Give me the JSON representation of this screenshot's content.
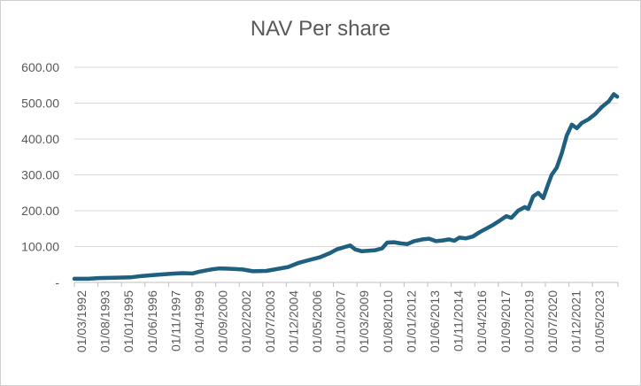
{
  "chart_data": {
    "type": "line",
    "title": "NAV Per share",
    "xlabel": "",
    "ylabel": "",
    "ylim": [
      0,
      600
    ],
    "grid": true,
    "legend": "none",
    "line_color": "#1f5f7f",
    "y_tick_labels": [
      "-",
      "100.00",
      "200.00",
      "300.00",
      "400.00",
      "500.00",
      "600.00"
    ],
    "x_tick_labels": [
      "01/03/1992",
      "01/08/1993",
      "01/01/1995",
      "01/06/1996",
      "01/11/1997",
      "01/04/1999",
      "01/09/2000",
      "01/02/2002",
      "01/07/2003",
      "01/12/2004",
      "01/05/2006",
      "01/10/2007",
      "01/03/2009",
      "01/08/2010",
      "01/01/2012",
      "01/06/2013",
      "01/11/2014",
      "01/04/2016",
      "01/09/2017",
      "01/02/2019",
      "01/07/2020",
      "01/12/2021",
      "01/05/2023"
    ],
    "series": [
      {
        "values": [
          [
            1992.17,
            10
          ],
          [
            1993.0,
            10
          ],
          [
            1993.6,
            12
          ],
          [
            1994.5,
            13
          ],
          [
            1995.5,
            14
          ],
          [
            1996.2,
            18
          ],
          [
            1997.0,
            21
          ],
          [
            1997.9,
            24
          ],
          [
            1998.6,
            26
          ],
          [
            1999.2,
            25
          ],
          [
            1999.6,
            30
          ],
          [
            2000.3,
            36
          ],
          [
            2000.8,
            39
          ],
          [
            2001.5,
            38
          ],
          [
            2002.2,
            36
          ],
          [
            2002.8,
            31
          ],
          [
            2003.6,
            32
          ],
          [
            2004.2,
            37
          ],
          [
            2004.9,
            43
          ],
          [
            2005.5,
            54
          ],
          [
            2006.2,
            63
          ],
          [
            2006.8,
            70
          ],
          [
            2007.4,
            82
          ],
          [
            2007.8,
            92
          ],
          [
            2008.3,
            99
          ],
          [
            2008.6,
            103
          ],
          [
            2008.9,
            92
          ],
          [
            2009.3,
            87
          ],
          [
            2009.6,
            88
          ],
          [
            2010.1,
            90
          ],
          [
            2010.5,
            95
          ],
          [
            2010.8,
            111
          ],
          [
            2011.2,
            112
          ],
          [
            2011.6,
            109
          ],
          [
            2012.0,
            107
          ],
          [
            2012.4,
            115
          ],
          [
            2012.9,
            120
          ],
          [
            2013.3,
            122
          ],
          [
            2013.7,
            115
          ],
          [
            2014.1,
            117
          ],
          [
            2014.5,
            120
          ],
          [
            2014.8,
            116
          ],
          [
            2015.1,
            125
          ],
          [
            2015.5,
            123
          ],
          [
            2015.9,
            128
          ],
          [
            2016.3,
            140
          ],
          [
            2016.7,
            150
          ],
          [
            2017.1,
            160
          ],
          [
            2017.5,
            172
          ],
          [
            2017.9,
            185
          ],
          [
            2018.2,
            180
          ],
          [
            2018.6,
            200
          ],
          [
            2019.0,
            210
          ],
          [
            2019.2,
            205
          ],
          [
            2019.5,
            240
          ],
          [
            2019.8,
            250
          ],
          [
            2020.1,
            235
          ],
          [
            2020.4,
            275
          ],
          [
            2020.6,
            300
          ],
          [
            2020.9,
            320
          ],
          [
            2021.2,
            360
          ],
          [
            2021.5,
            410
          ],
          [
            2021.8,
            440
          ],
          [
            2022.1,
            430
          ],
          [
            2022.4,
            445
          ],
          [
            2022.8,
            455
          ],
          [
            2023.2,
            470
          ],
          [
            2023.6,
            490
          ],
          [
            2024.0,
            505
          ],
          [
            2024.3,
            525
          ],
          [
            2024.5,
            518
          ]
        ]
      }
    ]
  }
}
